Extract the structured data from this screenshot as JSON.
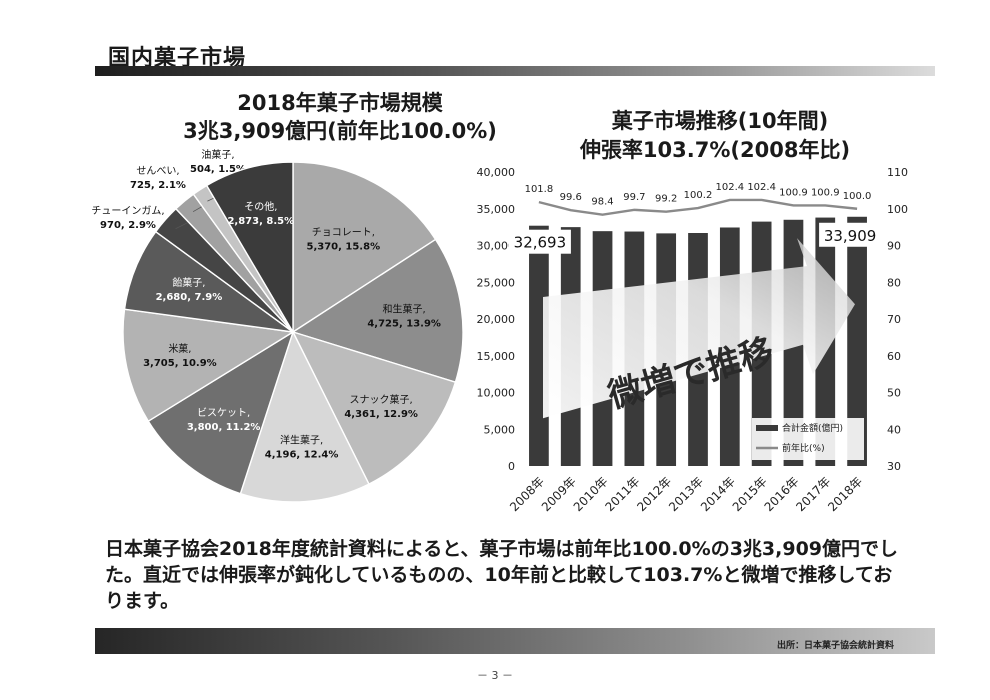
{
  "page": {
    "title": "国内菓子市場",
    "summary": "日本菓子協会2018年度統計資料によると、菓子市場は前年比100.0%の3兆3,909億円でした。直近では伸張率が鈍化しているものの、10年前と比較して103.7%と微増で推移しております。",
    "source": "出所：日本菓子協会統計資料",
    "page_number": "－ 3 －"
  },
  "pie": {
    "title_line1": "2018年菓子市場規模",
    "title_line2": "3兆3,909億円(前年比100.0%)"
  },
  "trend": {
    "title_line1": "菓子市場推移(10年間)",
    "title_line2": "伸張率103.7%(2008年比)",
    "arrow_text": "微増で推移",
    "first_value_label": "32,693",
    "last_value_label": "33,909"
  },
  "chart_data": [
    {
      "type": "pie",
      "slices": [
        {
          "label": "チョコレート",
          "value": 5370,
          "percent": "15.8%",
          "value_text": "5,370",
          "color": "#a9a9a9"
        },
        {
          "label": "和生菓子",
          "value": 4725,
          "percent": "13.9%",
          "value_text": "4,725",
          "color": "#8d8d8d"
        },
        {
          "label": "スナック菓子",
          "value": 4361,
          "percent": "12.9%",
          "value_text": "4,361",
          "color": "#bcbcbc"
        },
        {
          "label": "洋生菓子",
          "value": 4196,
          "percent": "12.4%",
          "value_text": "4,196",
          "color": "#d8d8d8"
        },
        {
          "label": "ビスケット",
          "value": 3800,
          "percent": "11.2%",
          "value_text": "3,800",
          "color": "#6f6f6f"
        },
        {
          "label": "米菓",
          "value": 3705,
          "percent": "10.9%",
          "value_text": "3,705",
          "color": "#b3b3b3"
        },
        {
          "label": "飴菓子",
          "value": 2680,
          "percent": "7.9%",
          "value_text": "2,680",
          "color": "#5a5a5a"
        },
        {
          "label": "チューインガム",
          "value": 970,
          "percent": "2.9%",
          "value_text": "970",
          "color": "#454545"
        },
        {
          "label": "せんべい",
          "value": 725,
          "percent": "2.1%",
          "value_text": "725",
          "color": "#a1a1a1"
        },
        {
          "label": "油菓子",
          "value": 504,
          "percent": "1.5%",
          "value_text": "504",
          "color": "#c4c4c4"
        },
        {
          "label": "その他",
          "value": 2873,
          "percent": "8.5%",
          "value_text": "2,873",
          "color": "#3b3b3b"
        }
      ]
    },
    {
      "type": "bar",
      "categories": [
        "2008年",
        "2009年",
        "2010年",
        "2011年",
        "2012年",
        "2013年",
        "2014年",
        "2015年",
        "2016年",
        "2017年",
        "2018年"
      ],
      "series": [
        {
          "name": "合計金額(億円)",
          "type": "bar",
          "axis": "left",
          "values": [
            32693,
            32500,
            31950,
            31900,
            31650,
            31700,
            32450,
            33250,
            33500,
            33800,
            33909
          ],
          "color": "#3a3a3a"
        },
        {
          "name": "前年比(%)",
          "type": "line",
          "axis": "right",
          "values": [
            101.8,
            99.6,
            98.4,
            99.7,
            99.2,
            100.2,
            102.4,
            102.4,
            100.9,
            100.9,
            100.0
          ],
          "labels": [
            "101.8",
            "99.6",
            "98.4",
            "99.7",
            "99.2",
            "100.2",
            "102.4",
            "102.4",
            "100.9",
            "100.9",
            "100.0"
          ],
          "color": "#8a8a8a"
        }
      ],
      "ylim_left": [
        0,
        40000
      ],
      "ylim_right": [
        30,
        110
      ],
      "yticks_left": [
        "0",
        "5,000",
        "10,000",
        "15,000",
        "20,000",
        "25,000",
        "30,000",
        "35,000",
        "40,000"
      ],
      "yticks_right": [
        "30",
        "40",
        "50",
        "60",
        "70",
        "80",
        "90",
        "100",
        "110"
      ],
      "legend_position": "bottom-right",
      "grid": false
    }
  ]
}
